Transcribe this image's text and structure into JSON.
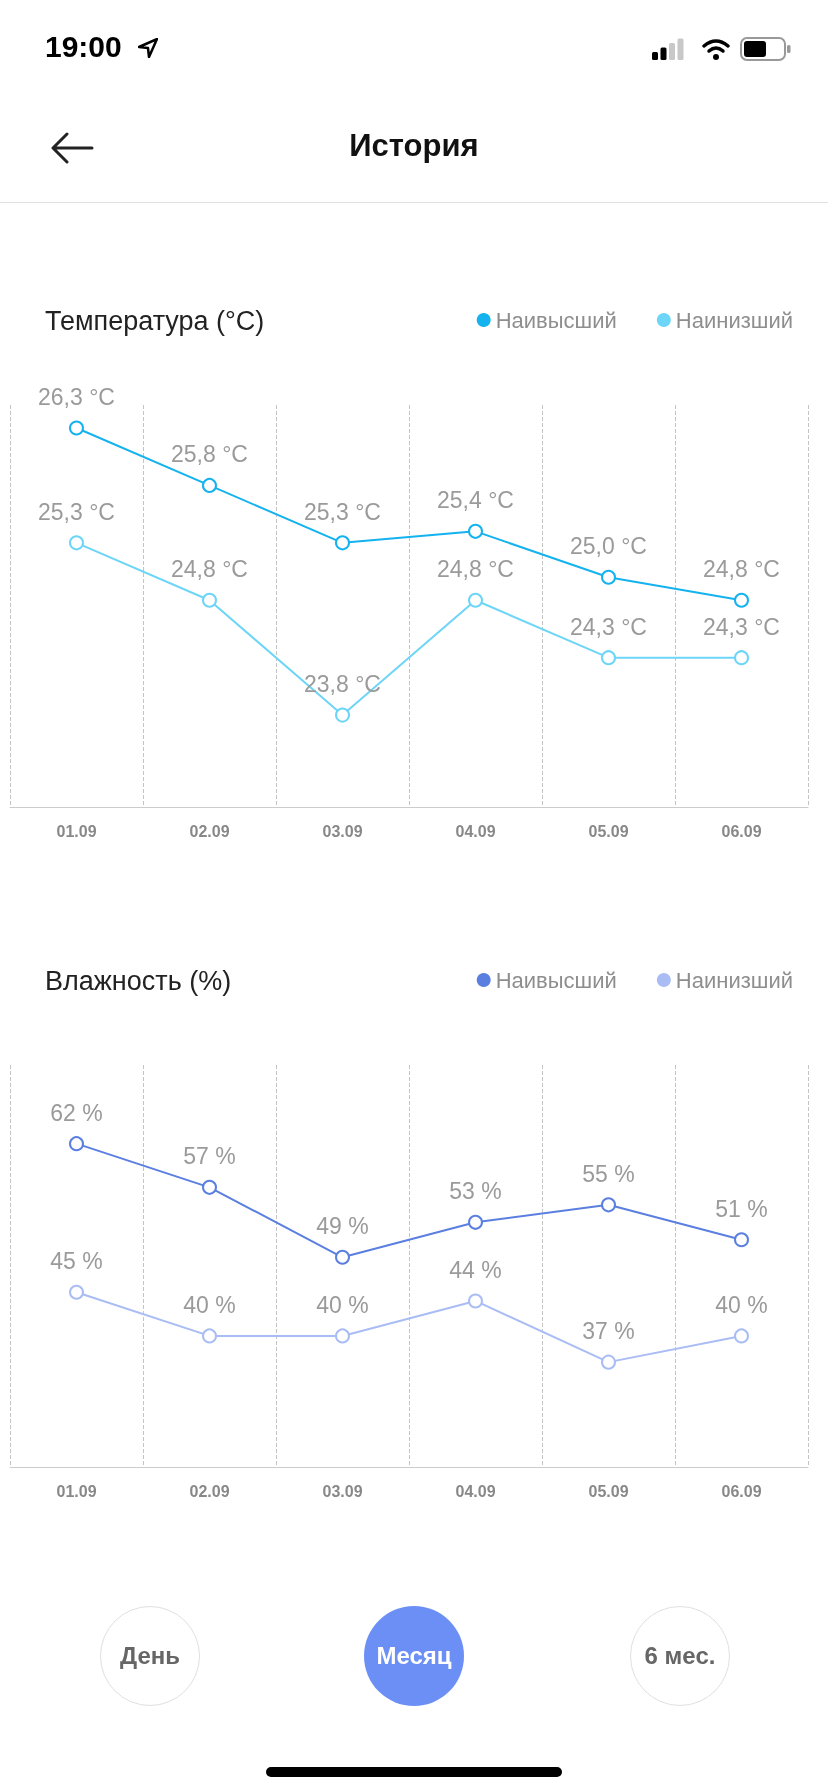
{
  "chart_data": [
    {
      "type": "line",
      "title": "Температура (°C)",
      "annotations": [
        "19:00",
        "История"
      ],
      "categories": [
        "01.09",
        "02.09",
        "03.09",
        "04.09",
        "05.09",
        "06.09"
      ],
      "ylim": [
        23,
        26.5
      ],
      "grid": "x",
      "legend": "top right",
      "marker": "circle",
      "line_style": "solid",
      "series": [
        {
          "name": "Наивысший",
          "color": "#14b2ef",
          "values": [
            26.3,
            25.8,
            25.3,
            25.4,
            25.0,
            24.8
          ],
          "value_labels": [
            "26,3 °C",
            "25,8 °C",
            "25,3 °C",
            "25,4 °C",
            "25,0 °C",
            "24,8 °C"
          ]
        },
        {
          "name": "Наинизший",
          "color": "#6dd5f7",
          "values": [
            25.3,
            24.8,
            23.8,
            24.8,
            24.3,
            24.3
          ],
          "value_labels": [
            "25,3 °C",
            "24,8 °C",
            "23,8 °C",
            "24,8 °C",
            "24,3 °C",
            "24,3 °C"
          ]
        }
      ]
    },
    {
      "type": "line",
      "title": "Влажность (%)",
      "annotations": [
        "День",
        "Месяц",
        "6 мес."
      ],
      "categories": [
        "01.09",
        "02.09",
        "03.09",
        "04.09",
        "05.09",
        "06.09"
      ],
      "ylim": [
        25,
        71
      ],
      "grid": "x",
      "legend": "top right",
      "marker": "circle",
      "line_style": "solid",
      "series": [
        {
          "name": "Наивысший",
          "color": "#5a7fe0",
          "values": [
            62,
            57,
            49,
            53,
            55,
            51
          ],
          "value_labels": [
            "62 %",
            "57 %",
            "49 %",
            "53 %",
            "55 %",
            "51 %"
          ]
        },
        {
          "name": "Наинизший",
          "color": "#a9bdf4",
          "values": [
            45,
            40,
            40,
            44,
            37,
            40
          ],
          "value_labels": [
            "45 %",
            "40 %",
            "40 %",
            "44 %",
            "37 %",
            "40 %"
          ]
        }
      ]
    }
  ]
}
